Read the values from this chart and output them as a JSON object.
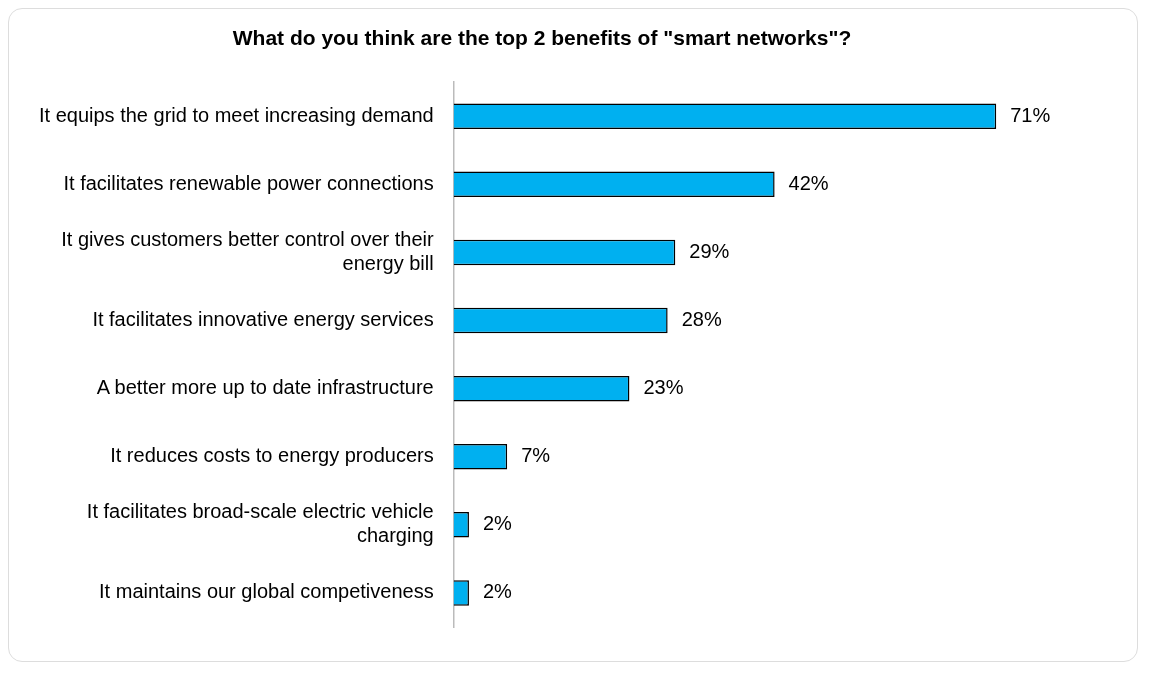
{
  "chart_data": {
    "type": "bar",
    "orientation": "horizontal",
    "title": "What do you think are the top 2 benefits of \"smart networks\"?",
    "categories": [
      "It equips the grid to meet increasing demand",
      "It facilitates renewable power connections",
      "It gives customers better control over their energy bill",
      "It facilitates innovative energy services",
      "A better more up to date infrastructure",
      "It reduces costs to energy producers",
      "It facilitates broad-scale electric vehicle charging",
      "It maintains our global competiveness"
    ],
    "values": [
      71,
      42,
      29,
      28,
      23,
      7,
      2,
      2
    ],
    "value_labels": [
      "71%",
      "42%",
      "29%",
      "28%",
      "23%",
      "7%",
      "2%",
      "2%"
    ],
    "color": "#00b0f0",
    "grid": false,
    "legend": false,
    "tick_labels": "y"
  }
}
